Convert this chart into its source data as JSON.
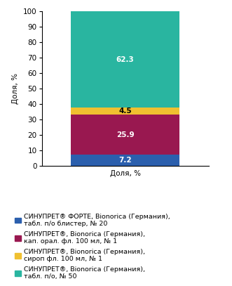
{
  "segments": [
    {
      "label": "СИНУПРЕТ® ФОРТЕ, Bionorica (Германия),\nтабл. п/о блистер, № 20",
      "value": 7.2,
      "color": "#2b5fad"
    },
    {
      "label": "СИНУПРЕТ®, Bionorica (Германия),\nкап. орал. фл. 100 мл, № 1",
      "value": 25.9,
      "color": "#991850"
    },
    {
      "label": "СИНУПРЕТ®, Bionorica (Германия),\nсироп фл. 100 мл, № 1",
      "value": 4.5,
      "color": "#f0c030"
    },
    {
      "label": "СИНУПРЕТ®, Bionorica (Германия),\nтабл. п/о, № 50",
      "value": 62.3,
      "color": "#29b5a0"
    }
  ],
  "xlabel": "Доля, %",
  "ylabel": "Доля, %",
  "ylim": [
    0,
    100
  ],
  "yticks": [
    0,
    10,
    20,
    30,
    40,
    50,
    60,
    70,
    80,
    90,
    100
  ],
  "label_fontsize": 7.5,
  "legend_fontsize": 6.8,
  "axis_fontsize": 7.5,
  "tick_fontsize": 7.5,
  "value_4_5_color": "black"
}
